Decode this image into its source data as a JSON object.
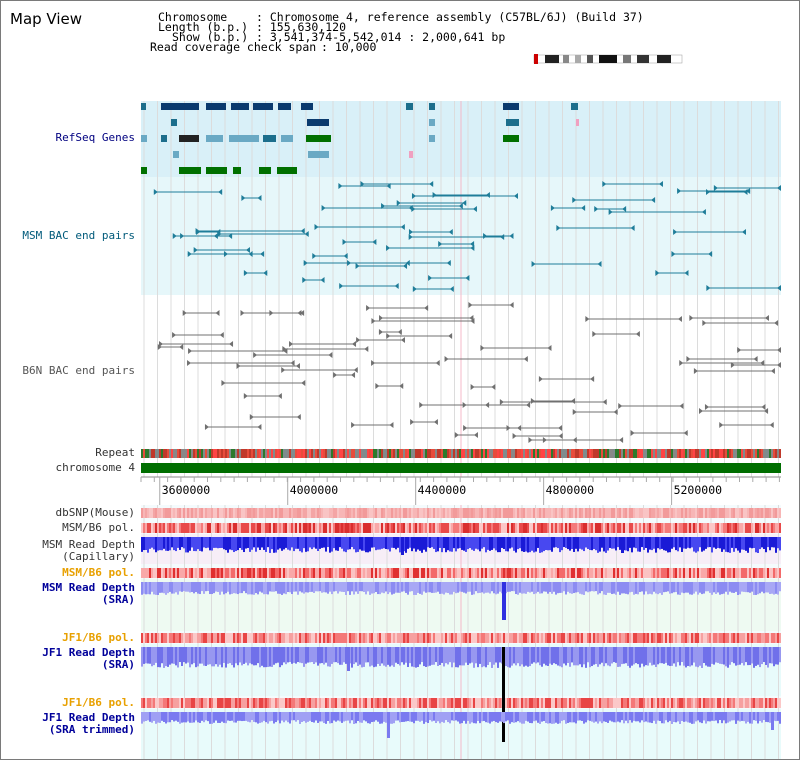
{
  "app": {
    "title": "Map View"
  },
  "header": {
    "chromosome_label": "Chromosome",
    "chromosome_value": ": Chromosome 4, reference assembly (C57BL/6J) (Build 37)",
    "length_label": "Length (b.p.)",
    "length_value": ": 155,630,120",
    "show_label": "Show (b.p.)",
    "show_value": ": 3,541,374-5,542,014 : 2,000,641 bp",
    "coverage_label": "Read coverage check span",
    "coverage_value": ": 10,000"
  },
  "tracks": {
    "refseq": {
      "label": "RefSeq Genes",
      "color": "#000080"
    },
    "msm_bac": {
      "label": "MSM BAC end pairs",
      "color": "#005a7a"
    },
    "b6n_bac": {
      "label": "B6N BAC end pairs",
      "color": "#555555"
    },
    "repeat": {
      "label": "Repeat"
    },
    "chromosome": {
      "label": "chromosome 4"
    },
    "dbsnp": {
      "label": "dbSNP(Mouse)"
    },
    "msm_b6_pol1": {
      "label": "MSM/B6 pol."
    },
    "msm_depth_cap": {
      "label": "MSM Read Depth",
      "label2": "(Capillary)"
    },
    "msm_b6_pol2": {
      "label": "MSM/B6 pol.",
      "color": "#e8a000"
    },
    "msm_depth_sra": {
      "label": "MSM Read Depth",
      "label2": "(SRA)",
      "color": "#00009a"
    },
    "jf1_b6_pol1": {
      "label": "JF1/B6 pol.",
      "color": "#e8a000"
    },
    "jf1_depth_sra": {
      "label": "JF1 Read Depth",
      "label2": "(SRA)",
      "color": "#00009a"
    },
    "jf1_b6_pol2": {
      "label": "JF1/B6 pol.",
      "color": "#e8a000"
    },
    "jf1_depth_trim": {
      "label": "JF1 Read Depth",
      "label2": "(SRA trimmed)",
      "color": "#00009a"
    }
  },
  "axis": {
    "ticks": [
      {
        "value": 3600000,
        "label": "3600000"
      },
      {
        "value": 4000000,
        "label": "4000000"
      },
      {
        "value": 4400000,
        "label": "4400000"
      },
      {
        "value": 4800000,
        "label": "4800000"
      },
      {
        "value": 5200000,
        "label": "5200000"
      }
    ],
    "start": 3541374,
    "end": 5542014
  }
}
